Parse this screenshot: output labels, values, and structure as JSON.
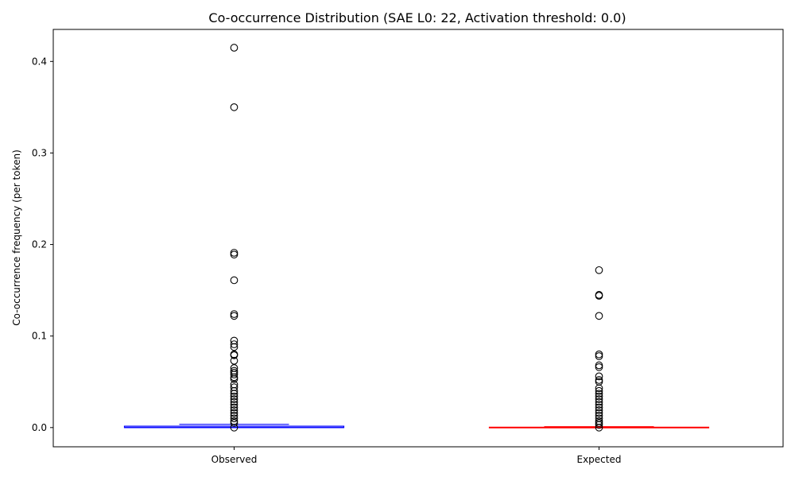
{
  "chart_data": {
    "type": "boxplot",
    "title": "Co-occurrence Distribution (SAE L0: 22, Activation threshold: 0.0)",
    "xlabel": "",
    "ylabel": "Co-occurrence frequency (per token)",
    "ylim": [
      -0.021,
      0.435
    ],
    "yticks": [
      0.0,
      0.1,
      0.2,
      0.3,
      0.4
    ],
    "ytick_labels": [
      "0.0",
      "0.1",
      "0.2",
      "0.3",
      "0.4"
    ],
    "categories": [
      "Observed",
      "Expected"
    ],
    "grid": false,
    "series": [
      {
        "box": {
          "q1": 0.0,
          "median": 0.0,
          "q3": 0.0015,
          "whisker_low": 0.0,
          "whisker_high": 0.0035
        },
        "color": "#0000ff",
        "outliers": [
          0.415,
          0.35,
          0.191,
          0.189,
          0.161,
          0.124,
          0.122,
          0.095,
          0.091,
          0.088,
          0.08,
          0.079,
          0.073,
          0.065,
          0.062,
          0.06,
          0.058,
          0.055,
          0.053,
          0.047,
          0.044,
          0.04,
          0.037,
          0.034,
          0.031,
          0.028,
          0.025,
          0.022,
          0.019,
          0.016,
          0.013,
          0.01,
          0.007,
          0.005,
          0.0
        ]
      },
      {
        "box": {
          "q1": 0.0,
          "median": 0.0,
          "q3": 0.0004,
          "whisker_low": 0.0,
          "whisker_high": 0.001
        },
        "color": "#ff0000",
        "outliers": [
          0.172,
          0.145,
          0.144,
          0.122,
          0.08,
          0.078,
          0.068,
          0.066,
          0.056,
          0.052,
          0.05,
          0.043,
          0.04,
          0.037,
          0.034,
          0.031,
          0.028,
          0.025,
          0.022,
          0.019,
          0.016,
          0.013,
          0.01,
          0.007,
          0.005,
          0.003,
          0.0
        ]
      }
    ]
  }
}
